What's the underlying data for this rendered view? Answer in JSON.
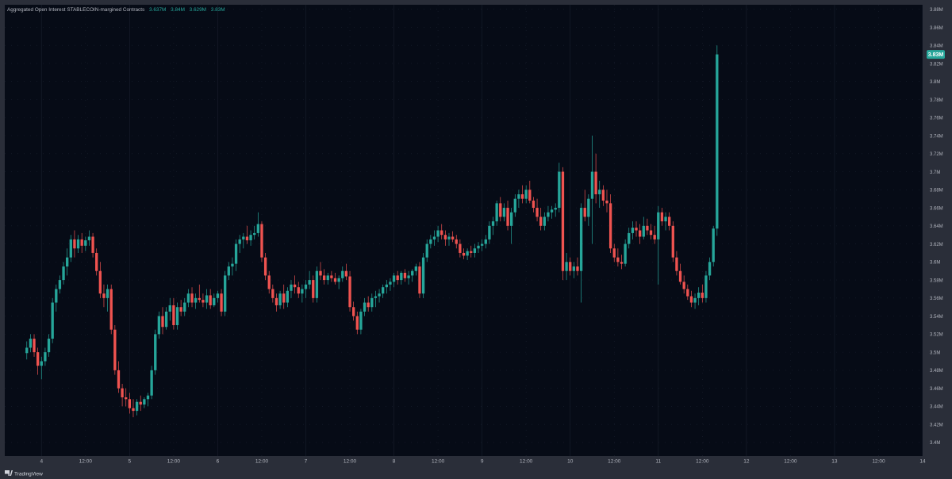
{
  "legend": {
    "title": "Aggregated Open Interest STABLECOIN-margined Contracts",
    "values": [
      "3.637M",
      "3.84M",
      "3.629M",
      "3.83M"
    ]
  },
  "brand": {
    "label": "TradingView",
    "icon": "tradingview-logo-icon"
  },
  "price_tag": {
    "label": "3.83M",
    "value": 3.83
  },
  "colors": {
    "background": "#060b16",
    "frame": "#2a2e39",
    "up": "#26a69a",
    "down": "#ef5350",
    "grid": "#1b2130",
    "text": "#b2b5be",
    "legend_value": "#26a69a"
  },
  "chart_data": {
    "type": "candlestick",
    "y_unit": "M",
    "ylim": [
      3.385,
      3.885
    ],
    "y_ticks": [
      3.88,
      3.86,
      3.84,
      3.82,
      3.8,
      3.78,
      3.76,
      3.74,
      3.72,
      3.7,
      3.68,
      3.66,
      3.64,
      3.62,
      3.6,
      3.58,
      3.56,
      3.54,
      3.52,
      3.5,
      3.48,
      3.46,
      3.44,
      3.42,
      3.4
    ],
    "y_tick_labels": [
      "3.88M",
      "3.86M",
      "3.84M",
      "3.82M",
      "3.8M",
      "3.78M",
      "3.76M",
      "3.74M",
      "3.72M",
      "3.7M",
      "3.68M",
      "3.66M",
      "3.64M",
      "3.62M",
      "3.6M",
      "3.58M",
      "3.56M",
      "3.54M",
      "3.52M",
      "3.5M",
      "3.48M",
      "3.46M",
      "3.44M",
      "3.42M",
      "3.4M"
    ],
    "x_unit": "hours",
    "xlim": [
      -10,
      240
    ],
    "x_ticks": [
      0,
      12,
      24,
      36,
      48,
      60,
      72,
      84,
      96,
      108,
      120,
      132,
      144,
      156,
      168,
      180,
      192,
      204,
      216,
      228,
      240
    ],
    "x_tick_labels": [
      "4",
      "12:00",
      "5",
      "12:00",
      "6",
      "12:00",
      "7",
      "12:00",
      "8",
      "12:00",
      "9",
      "12:00",
      "10",
      "12:00",
      "11",
      "12:00",
      "12",
      "12:00",
      "13",
      "12:00",
      "14"
    ],
    "candle_interval_hours": 1,
    "start_hour": -4,
    "ohlc": [
      [
        3.499,
        3.512,
        3.492,
        3.505
      ],
      [
        3.505,
        3.52,
        3.5,
        3.515
      ],
      [
        3.515,
        3.52,
        3.495,
        3.5
      ],
      [
        3.5,
        3.505,
        3.475,
        3.485
      ],
      [
        3.485,
        3.495,
        3.47,
        3.49
      ],
      [
        3.49,
        3.505,
        3.485,
        3.5
      ],
      [
        3.5,
        3.52,
        3.495,
        3.515
      ],
      [
        3.515,
        3.56,
        3.51,
        3.555
      ],
      [
        3.555,
        3.575,
        3.545,
        3.57
      ],
      [
        3.57,
        3.585,
        3.565,
        3.58
      ],
      [
        3.58,
        3.6,
        3.575,
        3.595
      ],
      [
        3.595,
        3.615,
        3.585,
        3.605
      ],
      [
        3.605,
        3.63,
        3.6,
        3.625
      ],
      [
        3.625,
        3.635,
        3.605,
        3.615
      ],
      [
        3.615,
        3.63,
        3.61,
        3.625
      ],
      [
        3.625,
        3.632,
        3.61,
        3.618
      ],
      [
        3.618,
        3.628,
        3.612,
        3.624
      ],
      [
        3.624,
        3.635,
        3.618,
        3.628
      ],
      [
        3.628,
        3.632,
        3.605,
        3.61
      ],
      [
        3.61,
        3.615,
        3.585,
        3.59
      ],
      [
        3.59,
        3.6,
        3.56,
        3.565
      ],
      [
        3.565,
        3.575,
        3.55,
        3.56
      ],
      [
        3.56,
        3.575,
        3.545,
        3.57
      ],
      [
        3.57,
        3.575,
        3.52,
        3.525
      ],
      [
        3.525,
        3.53,
        3.475,
        3.48
      ],
      [
        3.48,
        3.49,
        3.455,
        3.46
      ],
      [
        3.46,
        3.465,
        3.44,
        3.45
      ],
      [
        3.45,
        3.46,
        3.44,
        3.448
      ],
      [
        3.448,
        3.455,
        3.432,
        3.438
      ],
      [
        3.438,
        3.448,
        3.428,
        3.435
      ],
      [
        3.435,
        3.448,
        3.43,
        3.445
      ],
      [
        3.445,
        3.452,
        3.435,
        3.442
      ],
      [
        3.442,
        3.45,
        3.438,
        3.448
      ],
      [
        3.448,
        3.455,
        3.44,
        3.452
      ],
      [
        3.452,
        3.485,
        3.448,
        3.48
      ],
      [
        3.48,
        3.525,
        3.475,
        3.52
      ],
      [
        3.52,
        3.545,
        3.515,
        3.54
      ],
      [
        3.54,
        3.55,
        3.52,
        3.528
      ],
      [
        3.528,
        3.55,
        3.525,
        3.545
      ],
      [
        3.545,
        3.56,
        3.535,
        3.552
      ],
      [
        3.552,
        3.56,
        3.525,
        3.53
      ],
      [
        3.53,
        3.555,
        3.525,
        3.55
      ],
      [
        3.55,
        3.558,
        3.54,
        3.545
      ],
      [
        3.545,
        3.56,
        3.54,
        3.555
      ],
      [
        3.555,
        3.57,
        3.55,
        3.565
      ],
      [
        3.565,
        3.572,
        3.55,
        3.555
      ],
      [
        3.555,
        3.565,
        3.548,
        3.56
      ],
      [
        3.56,
        3.575,
        3.555,
        3.558
      ],
      [
        3.558,
        3.565,
        3.55,
        3.555
      ],
      [
        3.555,
        3.57,
        3.548,
        3.563
      ],
      [
        3.563,
        3.57,
        3.548,
        3.552
      ],
      [
        3.552,
        3.565,
        3.55,
        3.56
      ],
      [
        3.56,
        3.568,
        3.555,
        3.565
      ],
      [
        3.565,
        3.57,
        3.54,
        3.545
      ],
      [
        3.545,
        3.59,
        3.54,
        3.585
      ],
      [
        3.585,
        3.6,
        3.58,
        3.595
      ],
      [
        3.595,
        3.605,
        3.585,
        3.598
      ],
      [
        3.598,
        3.625,
        3.59,
        3.62
      ],
      [
        3.62,
        3.63,
        3.61,
        3.625
      ],
      [
        3.625,
        3.632,
        3.615,
        3.628
      ],
      [
        3.628,
        3.64,
        3.62,
        3.624
      ],
      [
        3.624,
        3.635,
        3.618,
        3.63
      ],
      [
        3.63,
        3.64,
        3.625,
        3.632
      ],
      [
        3.632,
        3.655,
        3.628,
        3.642
      ],
      [
        3.642,
        3.645,
        3.6,
        3.605
      ],
      [
        3.605,
        3.61,
        3.58,
        3.585
      ],
      [
        3.585,
        3.59,
        3.565,
        3.57
      ],
      [
        3.57,
        3.575,
        3.555,
        3.56
      ],
      [
        3.56,
        3.565,
        3.545,
        3.552
      ],
      [
        3.552,
        3.568,
        3.548,
        3.565
      ],
      [
        3.565,
        3.575,
        3.548,
        3.555
      ],
      [
        3.555,
        3.572,
        3.55,
        3.568
      ],
      [
        3.568,
        3.58,
        3.56,
        3.575
      ],
      [
        3.575,
        3.585,
        3.565,
        3.572
      ],
      [
        3.572,
        3.578,
        3.56,
        3.565
      ],
      [
        3.565,
        3.575,
        3.555,
        3.57
      ],
      [
        3.57,
        3.58,
        3.56,
        3.575
      ],
      [
        3.575,
        3.59,
        3.57,
        3.58
      ],
      [
        3.58,
        3.585,
        3.555,
        3.56
      ],
      [
        3.56,
        3.595,
        3.555,
        3.59
      ],
      [
        3.59,
        3.6,
        3.58,
        3.585
      ],
      [
        3.585,
        3.592,
        3.575,
        3.58
      ],
      [
        3.58,
        3.588,
        3.575,
        3.585
      ],
      [
        3.585,
        3.59,
        3.578,
        3.582
      ],
      [
        3.582,
        3.588,
        3.575,
        3.578
      ],
      [
        3.578,
        3.585,
        3.57,
        3.582
      ],
      [
        3.582,
        3.595,
        3.578,
        3.59
      ],
      [
        3.59,
        3.598,
        3.58,
        3.584
      ],
      [
        3.584,
        3.59,
        3.545,
        3.55
      ],
      [
        3.55,
        3.556,
        3.535,
        3.54
      ],
      [
        3.54,
        3.545,
        3.52,
        3.525
      ],
      [
        3.525,
        3.548,
        3.52,
        3.545
      ],
      [
        3.545,
        3.56,
        3.54,
        3.555
      ],
      [
        3.555,
        3.562,
        3.545,
        3.55
      ],
      [
        3.55,
        3.565,
        3.545,
        3.56
      ],
      [
        3.56,
        3.568,
        3.55,
        3.562
      ],
      [
        3.562,
        3.57,
        3.555,
        3.565
      ],
      [
        3.565,
        3.575,
        3.56,
        3.572
      ],
      [
        3.572,
        3.58,
        3.565,
        3.575
      ],
      [
        3.575,
        3.582,
        3.568,
        3.578
      ],
      [
        3.578,
        3.588,
        3.572,
        3.585
      ],
      [
        3.585,
        3.59,
        3.575,
        3.58
      ],
      [
        3.58,
        3.59,
        3.575,
        3.588
      ],
      [
        3.588,
        3.592,
        3.578,
        3.582
      ],
      [
        3.582,
        3.59,
        3.575,
        3.585
      ],
      [
        3.585,
        3.592,
        3.578,
        3.59
      ],
      [
        3.59,
        3.598,
        3.585,
        3.595
      ],
      [
        3.595,
        3.6,
        3.56,
        3.565
      ],
      [
        3.565,
        3.61,
        3.56,
        3.605
      ],
      [
        3.605,
        3.625,
        3.6,
        3.62
      ],
      [
        3.62,
        3.63,
        3.615,
        3.625
      ],
      [
        3.625,
        3.635,
        3.618,
        3.628
      ],
      [
        3.628,
        3.64,
        3.622,
        3.635
      ],
      [
        3.635,
        3.642,
        3.625,
        3.63
      ],
      [
        3.63,
        3.635,
        3.618,
        3.625
      ],
      [
        3.625,
        3.632,
        3.618,
        3.628
      ],
      [
        3.628,
        3.634,
        3.622,
        3.625
      ],
      [
        3.625,
        3.63,
        3.615,
        3.62
      ],
      [
        3.62,
        3.625,
        3.605,
        3.61
      ],
      [
        3.61,
        3.615,
        3.603,
        3.607
      ],
      [
        3.607,
        3.615,
        3.602,
        3.612
      ],
      [
        3.612,
        3.618,
        3.605,
        3.61
      ],
      [
        3.61,
        3.62,
        3.605,
        3.615
      ],
      [
        3.615,
        3.622,
        3.61,
        3.618
      ],
      [
        3.618,
        3.625,
        3.612,
        3.62
      ],
      [
        3.62,
        3.63,
        3.615,
        3.625
      ],
      [
        3.625,
        3.645,
        3.62,
        3.64
      ],
      [
        3.64,
        3.65,
        3.63,
        3.645
      ],
      [
        3.645,
        3.668,
        3.64,
        3.665
      ],
      [
        3.665,
        3.672,
        3.645,
        3.65
      ],
      [
        3.65,
        3.665,
        3.645,
        3.66
      ],
      [
        3.66,
        3.668,
        3.635,
        3.64
      ],
      [
        3.64,
        3.66,
        3.62,
        3.655
      ],
      [
        3.655,
        3.675,
        3.65,
        3.67
      ],
      [
        3.67,
        3.68,
        3.66,
        3.675
      ],
      [
        3.675,
        3.685,
        3.665,
        3.67
      ],
      [
        3.67,
        3.685,
        3.665,
        3.68
      ],
      [
        3.68,
        3.69,
        3.665,
        3.668
      ],
      [
        3.668,
        3.672,
        3.655,
        3.66
      ],
      [
        3.66,
        3.67,
        3.645,
        3.65
      ],
      [
        3.65,
        3.66,
        3.635,
        3.64
      ],
      [
        3.64,
        3.655,
        3.635,
        3.65
      ],
      [
        3.65,
        3.662,
        3.645,
        3.655
      ],
      [
        3.655,
        3.662,
        3.648,
        3.658
      ],
      [
        3.658,
        3.665,
        3.65,
        3.66
      ],
      [
        3.66,
        3.71,
        3.655,
        3.7
      ],
      [
        3.7,
        3.705,
        3.58,
        3.59
      ],
      [
        3.59,
        3.61,
        3.58,
        3.6
      ],
      [
        3.6,
        3.605,
        3.585,
        3.59
      ],
      [
        3.59,
        3.6,
        3.582,
        3.595
      ],
      [
        3.595,
        3.605,
        3.585,
        3.59
      ],
      [
        3.59,
        3.665,
        3.555,
        3.66
      ],
      [
        3.66,
        3.68,
        3.645,
        3.65
      ],
      [
        3.65,
        3.675,
        3.64,
        3.67
      ],
      [
        3.67,
        3.74,
        3.62,
        3.7
      ],
      [
        3.7,
        3.72,
        3.665,
        3.675
      ],
      [
        3.675,
        3.69,
        3.66,
        3.68
      ],
      [
        3.68,
        3.685,
        3.662,
        3.668
      ],
      [
        3.668,
        3.68,
        3.655,
        3.665
      ],
      [
        3.665,
        3.675,
        3.61,
        3.615
      ],
      [
        3.615,
        3.62,
        3.6,
        3.605
      ],
      [
        3.605,
        3.615,
        3.595,
        3.6
      ],
      [
        3.6,
        3.608,
        3.592,
        3.598
      ],
      [
        3.598,
        3.625,
        3.595,
        3.62
      ],
      [
        3.62,
        3.638,
        3.615,
        3.632
      ],
      [
        3.632,
        3.645,
        3.625,
        3.638
      ],
      [
        3.638,
        3.645,
        3.628,
        3.635
      ],
      [
        3.635,
        3.642,
        3.62,
        3.628
      ],
      [
        3.628,
        3.65,
        3.625,
        3.64
      ],
      [
        3.64,
        3.648,
        3.63,
        3.635
      ],
      [
        3.635,
        3.642,
        3.625,
        3.63
      ],
      [
        3.63,
        3.64,
        3.62,
        3.625
      ],
      [
        3.625,
        3.662,
        3.575,
        3.655
      ],
      [
        3.655,
        3.66,
        3.64,
        3.645
      ],
      [
        3.645,
        3.655,
        3.635,
        3.65
      ],
      [
        3.65,
        3.655,
        3.635,
        3.64
      ],
      [
        3.64,
        3.645,
        3.6,
        3.605
      ],
      [
        3.605,
        3.612,
        3.585,
        3.59
      ],
      [
        3.59,
        3.598,
        3.575,
        3.578
      ],
      [
        3.578,
        3.585,
        3.565,
        3.57
      ],
      [
        3.57,
        3.575,
        3.558,
        3.562
      ],
      [
        3.562,
        3.568,
        3.55,
        3.555
      ],
      [
        3.555,
        3.565,
        3.548,
        3.56
      ],
      [
        3.56,
        3.572,
        3.552,
        3.566
      ],
      [
        3.566,
        3.575,
        3.555,
        3.56
      ],
      [
        3.56,
        3.59,
        3.555,
        3.585
      ],
      [
        3.585,
        3.605,
        3.58,
        3.6
      ],
      [
        3.6,
        3.64,
        3.595,
        3.637
      ],
      [
        3.637,
        3.84,
        3.629,
        3.83
      ]
    ]
  }
}
